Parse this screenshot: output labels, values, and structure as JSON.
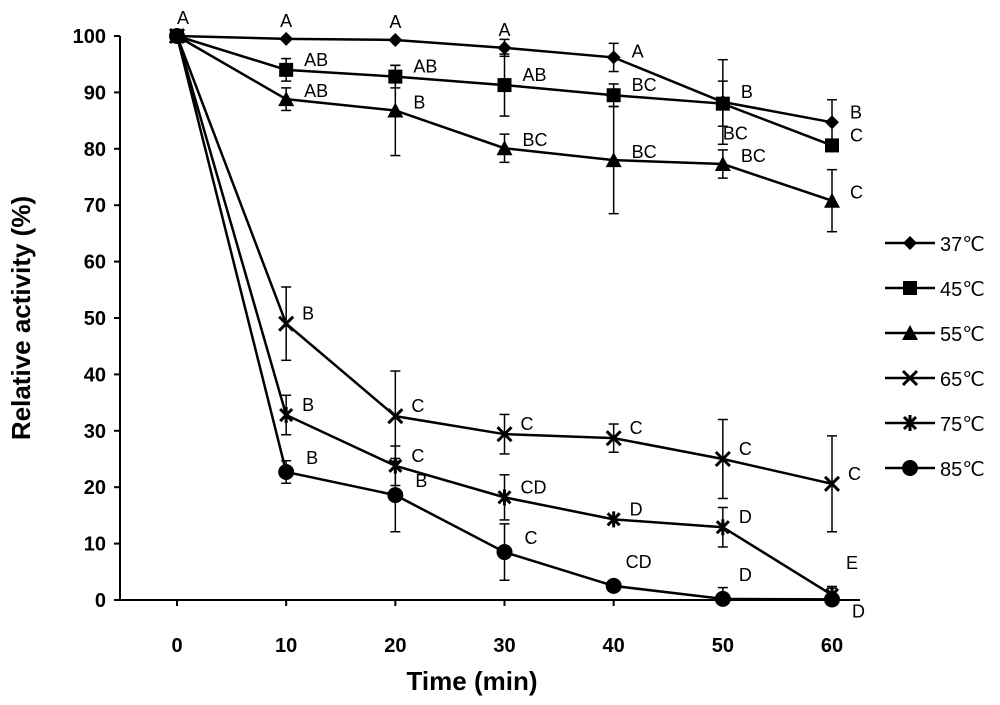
{
  "chart_data": {
    "type": "line",
    "title": "",
    "xlabel": "Time (min)",
    "ylabel": "Relative activity (%)",
    "xlim": [
      0,
      60
    ],
    "ylim": [
      0,
      100
    ],
    "x": [
      0,
      10,
      20,
      30,
      40,
      50,
      60
    ],
    "x_ticks": [
      "0",
      "10",
      "20",
      "30",
      "40",
      "50",
      "60"
    ],
    "y_ticks": [
      "0",
      "10",
      "20",
      "30",
      "40",
      "50",
      "60",
      "70",
      "80",
      "90",
      "100"
    ],
    "legend_position": "right",
    "grid": false,
    "series": [
      {
        "name": "37℃",
        "marker": "diamond",
        "values": [
          100,
          99.5,
          99.3,
          97.9,
          96.2,
          88.3,
          84.7
        ],
        "errors": [
          0,
          0,
          0,
          1.5,
          2.5,
          7.5,
          4
        ],
        "letters": [
          "A",
          "A",
          "A",
          "A",
          "A",
          "B",
          "B"
        ]
      },
      {
        "name": "45℃",
        "marker": "square",
        "values": [
          100,
          94,
          92.8,
          91.3,
          89.5,
          88,
          80.6
        ],
        "errors": [
          0,
          2,
          2,
          5.5,
          2,
          4,
          0
        ],
        "letters": [
          "",
          "AB",
          "AB",
          "AB",
          "BC",
          "BC",
          "C"
        ]
      },
      {
        "name": "55℃",
        "marker": "triangle",
        "values": [
          100,
          88.8,
          86.8,
          80.1,
          78,
          77.3,
          70.8
        ],
        "errors": [
          0,
          2,
          8,
          2.5,
          9.5,
          2.5,
          5.5
        ],
        "letters": [
          "",
          "AB",
          "B",
          "BC",
          "BC",
          "BC",
          "C"
        ]
      },
      {
        "name": "65℃",
        "marker": "x",
        "values": [
          100,
          49,
          32.6,
          29.4,
          28.7,
          25,
          20.6
        ],
        "errors": [
          0,
          6.5,
          8,
          3.5,
          2.5,
          7,
          8.5
        ],
        "letters": [
          "",
          "B",
          "C",
          "C",
          "C",
          "C",
          "C"
        ]
      },
      {
        "name": "75℃",
        "marker": "star",
        "values": [
          100,
          32.8,
          23.8,
          18.2,
          14.3,
          12.9,
          0.9
        ],
        "errors": [
          0,
          3.5,
          3.5,
          4,
          0,
          3.5,
          1.5
        ],
        "letters": [
          "",
          "B",
          "C",
          "CD",
          "D",
          "D",
          "E"
        ]
      },
      {
        "name": "85℃",
        "marker": "circle",
        "values": [
          100,
          22.7,
          18.6,
          8.5,
          2.5,
          0.2,
          0.1
        ],
        "errors": [
          0,
          2,
          6.5,
          5,
          0,
          2,
          2
        ],
        "letters": [
          "",
          "B",
          "B",
          "C",
          "CD",
          "D",
          "D"
        ]
      }
    ],
    "top_annotation": "A"
  }
}
